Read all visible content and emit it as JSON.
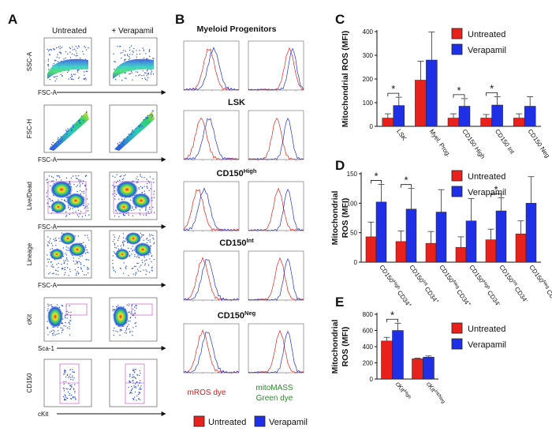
{
  "panel_labels": {
    "a": "A",
    "b": "B",
    "c": "C",
    "d": "D",
    "e": "E"
  },
  "colors": {
    "untreated": "#e8211d",
    "verapamil": "#1f2fe6",
    "mros_text": "#d8181d",
    "mitomass_text": "#2b8a2b"
  },
  "panel_a": {
    "col_headers": [
      "Untreated",
      "+ Verapamil"
    ],
    "rows": [
      {
        "y": "SSC-A",
        "x": "FSC-A"
      },
      {
        "y": "FSC-H",
        "x": "FSC-A"
      },
      {
        "y": "Live/Dead",
        "x": "FSC-A"
      },
      {
        "y": "Lineage",
        "x": "FSC-A"
      },
      {
        "y": "cKit",
        "x": "Sca-1"
      },
      {
        "y": "CD150",
        "x": "cKit"
      }
    ]
  },
  "panel_b": {
    "title": "Myeloid Progenitors",
    "rows": [
      {
        "name": "Myeloid Progenitors"
      },
      {
        "name": "LSK"
      },
      {
        "name": "CD150",
        "sup": "High"
      },
      {
        "name": "CD150",
        "sup": "Int"
      },
      {
        "name": "CD150",
        "sup": "Neg"
      }
    ],
    "dye_left": "mROS dye",
    "dye_right_line1": "mitoMASS",
    "dye_right_line2": "Green dye",
    "legend": [
      "Untreated",
      "Verapamil"
    ]
  },
  "chart_data": [
    {
      "panel": "C",
      "type": "bar",
      "ylabel": "Mitochondrial ROS (MFI)",
      "ylim": [
        0,
        400
      ],
      "yticks": [
        0,
        100,
        200,
        300,
        400
      ],
      "categories": [
        "LSK",
        "Myel. Prog.",
        "CD150 High",
        "CD150 Int",
        "CD150 Neg"
      ],
      "series": [
        {
          "name": "Untreated",
          "values": [
            35,
            195,
            35,
            35,
            35
          ],
          "errors": [
            18,
            80,
            18,
            15,
            18
          ]
        },
        {
          "name": "Verapamil",
          "values": [
            88,
            280,
            85,
            90,
            85
          ],
          "errors": [
            35,
            118,
            32,
            35,
            40
          ]
        }
      ],
      "significance": [
        0,
        2,
        3
      ],
      "legend": [
        "Untreated",
        "Verapamil"
      ]
    },
    {
      "panel": "D",
      "type": "bar",
      "ylabel_line1": "Mitochondrial",
      "ylabel_line2": "ROS (MFI)",
      "ylim": [
        0,
        150
      ],
      "yticks": [
        0,
        50,
        100,
        150
      ],
      "categories": [
        {
          "base": "CD150",
          "sup1": "High",
          "mid": " CD34",
          "sup2": "+"
        },
        {
          "base": "CD150",
          "sup1": "Int",
          "mid": " CD34",
          "sup2": "+"
        },
        {
          "base": "CD150",
          "sup1": "Neg",
          "mid": " CD34",
          "sup2": "+"
        },
        {
          "base": "CD150",
          "sup1": "High",
          "mid": " CD34",
          "sup2": "-"
        },
        {
          "base": "CD150",
          "sup1": "Int",
          "mid": " CD34",
          "sup2": "-"
        },
        {
          "base": "CD150",
          "sup1": "Neg",
          "mid": " CD34",
          "sup2": "-"
        }
      ],
      "series": [
        {
          "name": "Untreated",
          "values": [
            43,
            35,
            32,
            25,
            38,
            48
          ],
          "errors": [
            25,
            18,
            20,
            18,
            18,
            22
          ]
        },
        {
          "name": "Verapamil",
          "values": [
            102,
            90,
            85,
            70,
            87,
            100
          ],
          "errors": [
            30,
            35,
            38,
            38,
            22,
            45
          ]
        }
      ],
      "significance": [
        0,
        1,
        4
      ],
      "legend": [
        "Untreated",
        "Verapamil"
      ]
    },
    {
      "panel": "E",
      "type": "bar",
      "ylabel_line1": "Mitochondrial",
      "ylabel_line2": "ROS (MFI)",
      "ylim": [
        0,
        800
      ],
      "yticks": [
        0,
        200,
        400,
        600,
        800
      ],
      "categories": [
        {
          "base": "cKit",
          "sup1": "High"
        },
        {
          "base": "cKit",
          "sup1": "Int/Neg"
        }
      ],
      "series": [
        {
          "name": "Untreated",
          "values": [
            470,
            250
          ],
          "errors": [
            45,
            8
          ]
        },
        {
          "name": "Verapamil",
          "values": [
            600,
            270
          ],
          "errors": [
            90,
            15
          ]
        }
      ],
      "significance": [
        0
      ],
      "legend": [
        "Untreated",
        "Verapamil"
      ]
    }
  ]
}
